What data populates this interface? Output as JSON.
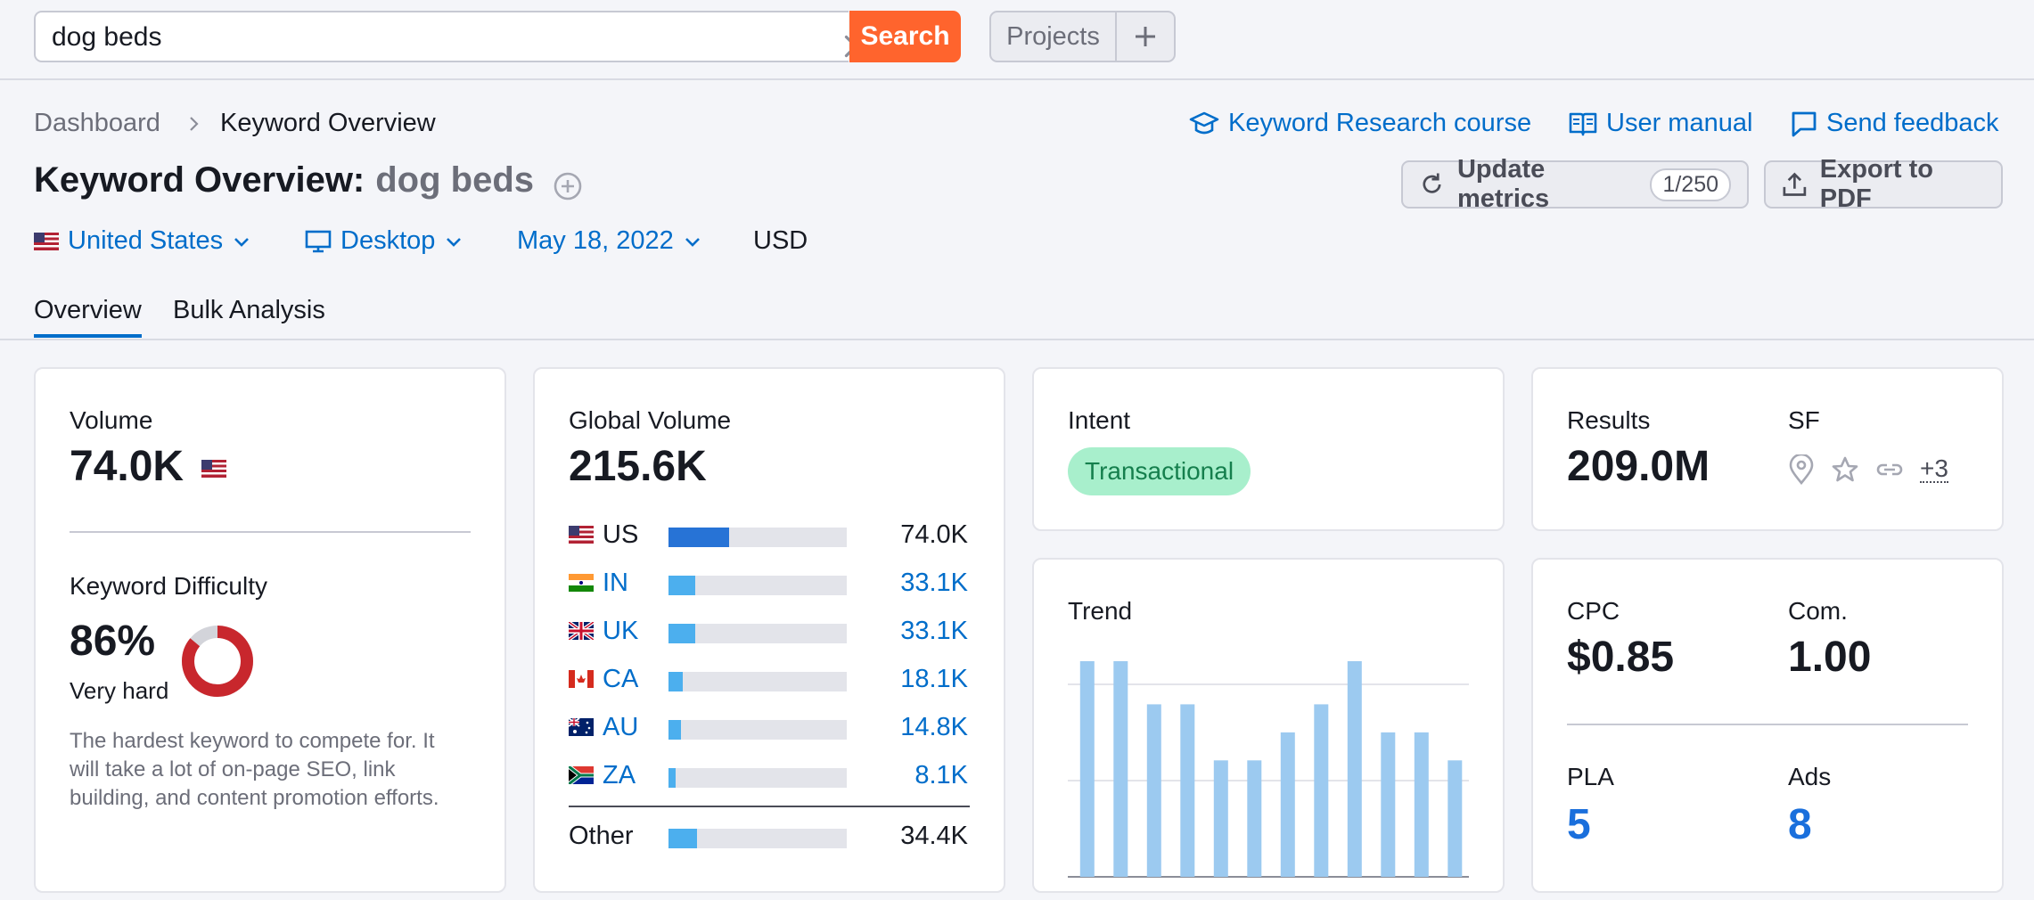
{
  "search": {
    "value": "dog beds",
    "button": "Search"
  },
  "topbar": {
    "projects": "Projects"
  },
  "breadcrumb": {
    "dashboard": "Dashboard",
    "current": "Keyword Overview"
  },
  "help_links": {
    "course": "Keyword Research course",
    "manual": "User manual",
    "feedback": "Send feedback"
  },
  "title": {
    "prefix": "Keyword Overview:",
    "keyword": "dog beds"
  },
  "actions": {
    "update": "Update metrics",
    "update_limit": "1/250",
    "export": "Export to PDF"
  },
  "filters": {
    "country": "United States",
    "device": "Desktop",
    "date": "May 18, 2022",
    "currency": "USD"
  },
  "tabs": [
    "Overview",
    "Bulk Analysis"
  ],
  "volume": {
    "label": "Volume",
    "value": "74.0K"
  },
  "difficulty": {
    "label": "Keyword Difficulty",
    "value": "86%",
    "percent": 86,
    "level": "Very hard",
    "description": "The hardest keyword to compete for. It will take a lot of on-page SEO, link building, and content promotion efforts."
  },
  "global_volume": {
    "label": "Global Volume",
    "value": "215.6K",
    "rows": [
      {
        "code": "US",
        "value": "74.0K",
        "share": 0.34
      },
      {
        "code": "IN",
        "value": "33.1K",
        "share": 0.15
      },
      {
        "code": "UK",
        "value": "33.1K",
        "share": 0.15
      },
      {
        "code": "CA",
        "value": "18.1K",
        "share": 0.08
      },
      {
        "code": "AU",
        "value": "14.8K",
        "share": 0.07
      },
      {
        "code": "ZA",
        "value": "8.1K",
        "share": 0.04
      }
    ],
    "other": {
      "label": "Other",
      "value": "34.4K",
      "share": 0.16
    }
  },
  "intent": {
    "label": "Intent",
    "value": "Transactional"
  },
  "results": {
    "label": "Results",
    "value": "209.0M"
  },
  "sf": {
    "label": "SF",
    "more": "+3"
  },
  "trend": {
    "label": "Trend",
    "chart_data": {
      "type": "bar",
      "values": [
        1.0,
        1.0,
        0.8,
        0.8,
        0.54,
        0.54,
        0.67,
        0.8,
        1.0,
        0.67,
        0.67,
        0.54
      ],
      "ylim": [
        0,
        1.0
      ],
      "grid": true
    }
  },
  "cpc": {
    "label": "CPC",
    "value": "$0.85"
  },
  "competition": {
    "label": "Com.",
    "value": "1.00"
  },
  "pla": {
    "label": "PLA",
    "value": "5"
  },
  "ads": {
    "label": "Ads",
    "value": "8"
  },
  "colors": {
    "accent": "#006dca",
    "search_button": "#ff642d",
    "kd_red": "#c8272d",
    "trend_bar": "#9ccaf0",
    "intent_bg": "#a8efcc"
  }
}
